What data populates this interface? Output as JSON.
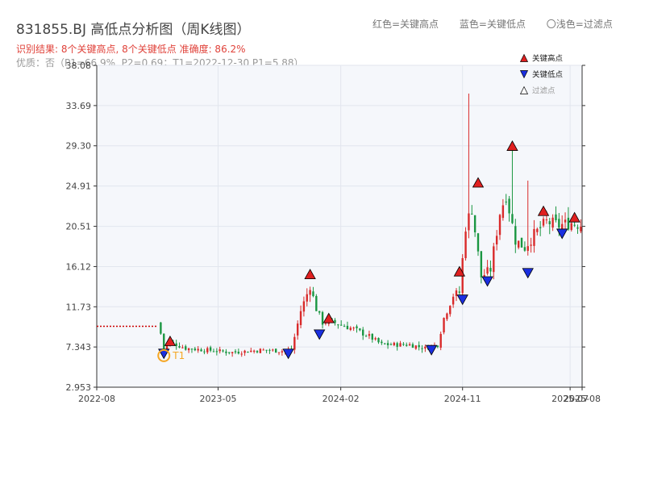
{
  "title": "831855.BJ 高低点分析图（周K线图）",
  "subtitle_result": "识别结果: 8个关键高点, 8个关键低点  准确度: 86.2%",
  "subtitle_quality": "优质：否（P1=66.9%, P2=0.69；T1=2022-12-30 P1=5.88）",
  "top_legend": [
    "红色=关键高点",
    "蓝色=关键低点",
    "〇浅色=过滤点"
  ],
  "legend": [
    {
      "label": "关键高点",
      "color": "#e02020",
      "shape": "up"
    },
    {
      "label": "关键低点",
      "color": "#1a2fe0",
      "shape": "down"
    },
    {
      "label": "过滤点",
      "color": "#ffffff",
      "shape": "up-hollow"
    }
  ],
  "colors": {
    "up": "#d92a2a",
    "down": "#1a9641",
    "high_marker": "#e02020",
    "low_marker": "#1a2fe0",
    "t1": "#f5a623",
    "ipo_line": "#cc0000"
  },
  "chart_data": {
    "type": "candlestick",
    "ylim": [
      2.953,
      38.08
    ],
    "yticks": [
      2.953,
      7.343,
      11.73,
      16.12,
      20.51,
      24.91,
      29.3,
      33.69,
      38.08
    ],
    "ytick_labels": [
      "2.953",
      "7.343",
      "11.73",
      "16.12",
      "20.51",
      "24.91",
      "29.30",
      "33.69",
      "38.08"
    ],
    "x_start": "2022-08-01",
    "x_end": "2025-07-28",
    "xticks": [
      "2022-08-01",
      "2023-05-01",
      "2024-02-01",
      "2024-11-01",
      "2025-07-01",
      "2025-07-28"
    ],
    "xtick_labels": [
      "2022-08",
      "2023-05",
      "2024-02",
      "2024-11",
      "2025-07",
      "2025-08"
    ],
    "issue_price": 9.6,
    "issue_line_range": [
      "2022-08-01",
      "2022-12-16"
    ],
    "anchors": [
      [
        "2022-12-23",
        8.8
      ],
      [
        "2022-12-30",
        7.2
      ],
      [
        "2023-01-13",
        7.9
      ],
      [
        "2023-02-17",
        7.2
      ],
      [
        "2023-04-07",
        7.0
      ],
      [
        "2023-06-02",
        6.75
      ],
      [
        "2023-08-04",
        7.0
      ],
      [
        "2023-09-29",
        6.9
      ],
      [
        "2023-10-13",
        7.0
      ],
      [
        "2023-11-03",
        11.3
      ],
      [
        "2023-11-24",
        14.0
      ],
      [
        "2023-12-08",
        11.5
      ],
      [
        "2023-12-22",
        10.0
      ],
      [
        "2024-01-05",
        10.2
      ],
      [
        "2024-03-01",
        9.3
      ],
      [
        "2024-04-05",
        8.5
      ],
      [
        "2024-05-03",
        7.6
      ],
      [
        "2024-07-05",
        7.6
      ],
      [
        "2024-08-09",
        7.2
      ],
      [
        "2024-09-06",
        7.6
      ],
      [
        "2024-09-20",
        10.5
      ],
      [
        "2024-10-11",
        13.0
      ],
      [
        "2024-10-25",
        13.3
      ],
      [
        "2024-11-08",
        20.5
      ],
      [
        "2024-11-22",
        22.5
      ],
      [
        "2024-12-13",
        15.0
      ],
      [
        "2025-01-03",
        15.8
      ],
      [
        "2025-01-24",
        22.0
      ],
      [
        "2025-02-07",
        24.0
      ],
      [
        "2025-02-28",
        19.0
      ],
      [
        "2025-03-21",
        18.2
      ],
      [
        "2025-04-11",
        19.6
      ],
      [
        "2025-05-09",
        21.0
      ],
      [
        "2025-06-06",
        20.6
      ],
      [
        "2025-07-04",
        20.9
      ],
      [
        "2025-07-25",
        20.7
      ]
    ],
    "spikes": [
      {
        "date": "2024-11-15",
        "high": 35.0
      },
      {
        "date": "2025-02-21",
        "high": 29.2
      },
      {
        "date": "2025-03-28",
        "high": 25.5
      }
    ],
    "key_highs": [
      {
        "date": "2023-01-13",
        "value": 8.0
      },
      {
        "date": "2023-11-24",
        "value": 15.3
      },
      {
        "date": "2024-01-05",
        "value": 10.5
      },
      {
        "date": "2024-10-25",
        "value": 15.6
      },
      {
        "date": "2024-12-06",
        "value": 25.3
      },
      {
        "date": "2025-02-21",
        "value": 29.3
      },
      {
        "date": "2025-05-02",
        "value": 22.2
      },
      {
        "date": "2025-07-11",
        "value": 21.5
      }
    ],
    "key_lows": [
      {
        "date": "2022-12-30",
        "value": 6.6
      },
      {
        "date": "2023-10-06",
        "value": 6.6
      },
      {
        "date": "2023-12-15",
        "value": 8.7
      },
      {
        "date": "2024-08-23",
        "value": 7.0
      },
      {
        "date": "2024-11-01",
        "value": 12.5
      },
      {
        "date": "2024-12-27",
        "value": 14.5
      },
      {
        "date": "2025-03-28",
        "value": 15.4
      },
      {
        "date": "2025-06-13",
        "value": 19.7
      }
    ],
    "t1": {
      "date": "2022-12-30",
      "value": 6.4,
      "label": "T1"
    }
  }
}
